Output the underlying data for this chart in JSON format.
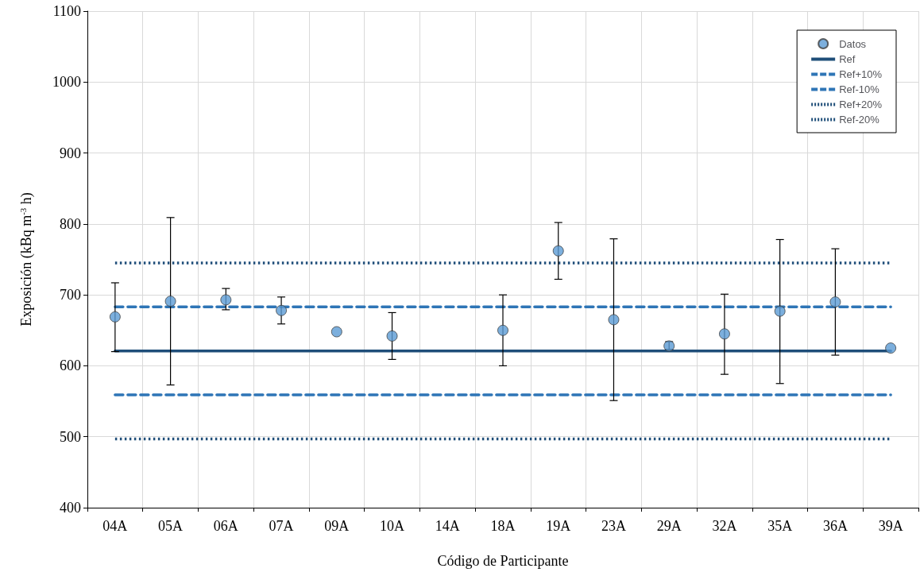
{
  "chart_data": {
    "type": "scatter",
    "xlabel": "Código de Participante",
    "ylabel": "Exposición (kBq m$^{-3}$ h)",
    "categories": [
      "04A",
      "05A",
      "06A",
      "07A",
      "09A",
      "10A",
      "14A",
      "18A",
      "19A",
      "23A",
      "29A",
      "32A",
      "35A",
      "36A",
      "39A"
    ],
    "ylim": [
      400,
      1100
    ],
    "yticks": [
      400,
      500,
      600,
      700,
      800,
      900,
      1000,
      1100
    ],
    "grid": true,
    "legend": "top right",
    "series": [
      {
        "name": "Datos",
        "type": "scatter",
        "marker": "circle",
        "color": "#5b9bd5",
        "values": [
          669,
          691,
          693,
          678,
          648,
          642,
          null,
          650,
          762,
          665,
          628,
          645,
          677,
          690,
          625
        ],
        "errors": [
          [
            620,
            717
          ],
          [
            573,
            809
          ],
          [
            679,
            709
          ],
          [
            659,
            697
          ],
          null,
          [
            609,
            675
          ],
          null,
          [
            600,
            700
          ],
          [
            722,
            802
          ],
          [
            551,
            779
          ],
          [
            623,
            634
          ],
          [
            588,
            701
          ],
          [
            575,
            778
          ],
          [
            615,
            765
          ],
          null
        ]
      },
      {
        "name": "Ref",
        "type": "line",
        "marker": "none",
        "line_style": "solid",
        "color": "#1f4e79",
        "values": [
          621,
          621,
          621,
          621,
          621,
          621,
          621,
          621,
          621,
          621,
          621,
          621,
          621,
          621,
          621
        ]
      },
      {
        "name": "Ref+10%",
        "type": "line",
        "marker": "none",
        "line_style": "dashed",
        "color": "#2e75b6",
        "values": [
          683,
          683,
          683,
          683,
          683,
          683,
          683,
          683,
          683,
          683,
          683,
          683,
          683,
          683,
          683
        ]
      },
      {
        "name": "Ref-10%",
        "type": "line",
        "marker": "none",
        "line_style": "dashed",
        "color": "#2e75b6",
        "values": [
          559,
          559,
          559,
          559,
          559,
          559,
          559,
          559,
          559,
          559,
          559,
          559,
          559,
          559,
          559
        ]
      },
      {
        "name": "Ref+20%",
        "type": "line",
        "marker": "none",
        "line_style": "dotted",
        "color": "#1f4e79",
        "values": [
          745,
          745,
          745,
          745,
          745,
          745,
          745,
          745,
          745,
          745,
          745,
          745,
          745,
          745,
          745
        ]
      },
      {
        "name": "Ref-20%",
        "type": "line",
        "marker": "none",
        "line_style": "dotted",
        "color": "#1f4e79",
        "values": [
          497,
          497,
          497,
          497,
          497,
          497,
          497,
          497,
          497,
          497,
          497,
          497,
          497,
          497,
          497
        ]
      }
    ]
  }
}
